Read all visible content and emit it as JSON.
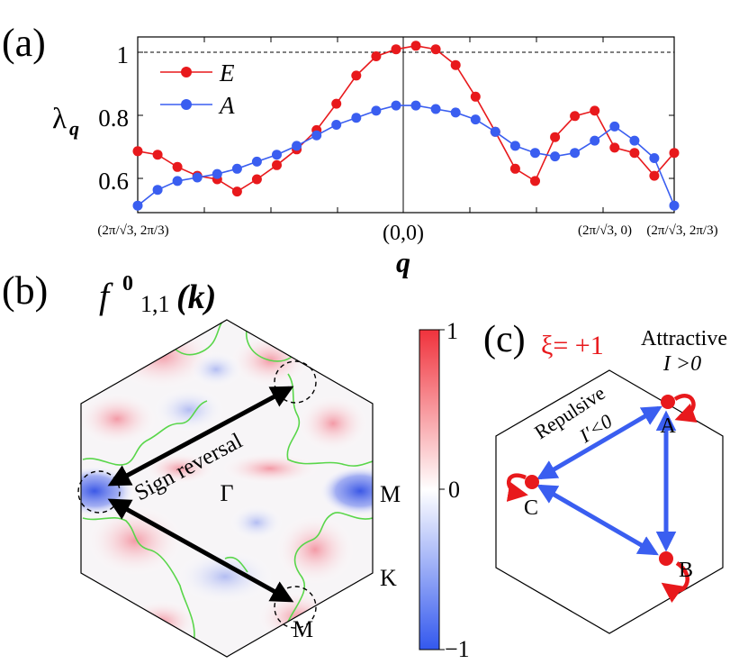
{
  "panel_a": {
    "label": "(a)",
    "ylabel_main": "λ",
    "ylabel_sub": "q",
    "xlabel": "q",
    "ytick_labels": [
      "1",
      "0.8",
      "0.6"
    ],
    "xtick_left": "(2π/√3, 2π/3)",
    "xtick_center": "(0,0)",
    "xtick_right_a": "(2π/√3, 0)",
    "xtick_right_b": "(2π/√3, 2π/3)",
    "colors": {
      "E": "#e8191c",
      "A": "#3a5ef0"
    }
  },
  "chart_data": {
    "type": "line",
    "xlabel": "q",
    "ylabel": "λq",
    "ylim": [
      0.53,
      1.03
    ],
    "reference_line": 1.0,
    "legend_placement": "top-left",
    "x_index": [
      0,
      1,
      2,
      3,
      4,
      5,
      6,
      7,
      8,
      9,
      10,
      11,
      12,
      13,
      14,
      15,
      16,
      17,
      18,
      19,
      20,
      21,
      22,
      23,
      24,
      25,
      26,
      27
    ],
    "series": [
      {
        "name": "E",
        "values": [
          0.705,
          0.695,
          0.66,
          0.635,
          0.625,
          0.59,
          0.625,
          0.665,
          0.71,
          0.765,
          0.84,
          0.92,
          0.975,
          0.995,
          1.005,
          0.995,
          0.95,
          0.86,
          0.76,
          0.655,
          0.62,
          0.745,
          0.805,
          0.82,
          0.715,
          0.7,
          0.635,
          0.7
        ]
      },
      {
        "name": "A",
        "values": [
          0.55,
          0.595,
          0.62,
          0.63,
          0.64,
          0.655,
          0.675,
          0.695,
          0.72,
          0.75,
          0.78,
          0.8,
          0.82,
          0.835,
          0.835,
          0.825,
          0.815,
          0.795,
          0.76,
          0.72,
          0.7,
          0.69,
          0.7,
          0.735,
          0.775,
          0.735,
          0.685,
          0.55
        ]
      }
    ]
  },
  "panel_b": {
    "label": "(b)",
    "title_f": "f",
    "title_sup": "0",
    "title_sub": "1,1",
    "title_arg": "(k)",
    "gamma": "Γ",
    "M_right": "M",
    "M_bottom": "M",
    "K": "K",
    "sign_reversal": "Sign reversal"
  },
  "colorbar": {
    "max": "1",
    "mid": "0",
    "min": "−1"
  },
  "panel_c": {
    "label": "(c)",
    "xi": "ξ= +1",
    "attractive": "Attractive",
    "attractive_cond": "I >0",
    "repulsive": "Repulsive",
    "repulsive_cond": "I′<0",
    "node_A": "A",
    "node_B": "B",
    "node_C": "C"
  }
}
